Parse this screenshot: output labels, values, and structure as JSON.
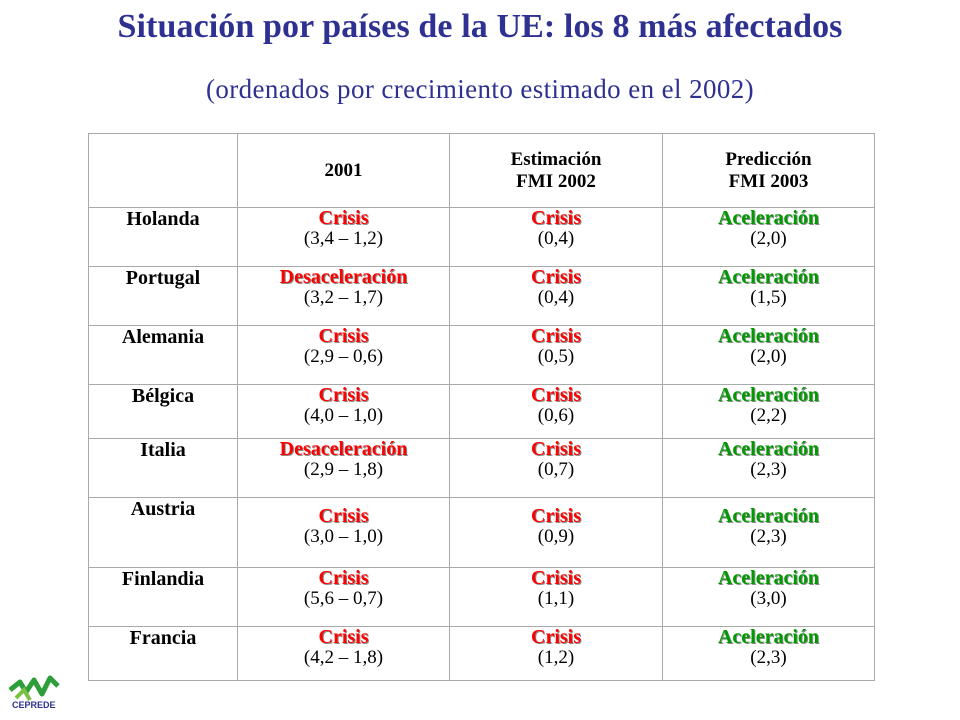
{
  "title": "Situación por países de la UE: los 8 más afectados",
  "subtitle": "(ordenados por crecimiento estimado en el 2002)",
  "header": {
    "col1": "2001",
    "col2_line1": "Estimación",
    "col2_line2": "FMI 2002",
    "col3_line1": "Predicción",
    "col3_line2": "FMI 2003"
  },
  "colors": {
    "crisis": "#ff0000",
    "aceleracion": "#009900",
    "title": "#2e3192"
  },
  "rows": [
    {
      "country": "Holanda",
      "c1": {
        "status": "Crisis",
        "tone": "red",
        "value": "(3,4 – 1,2)"
      },
      "c2": {
        "status": "Crisis",
        "tone": "red",
        "value": "(0,4)"
      },
      "c3": {
        "status": "Aceleración",
        "tone": "green",
        "value": "(2,0)"
      }
    },
    {
      "country": "Portugal",
      "c1": {
        "status": "Desaceleración",
        "tone": "red",
        "value": "(3,2 – 1,7)"
      },
      "c2": {
        "status": "Crisis",
        "tone": "red",
        "value": "(0,4)"
      },
      "c3": {
        "status": "Aceleración",
        "tone": "green",
        "value": "(1,5)"
      }
    },
    {
      "country": "Alemania",
      "c1": {
        "status": "Crisis",
        "tone": "red",
        "value": "(2,9 – 0,6)"
      },
      "c2": {
        "status": "Crisis",
        "tone": "red",
        "value": "(0,5)"
      },
      "c3": {
        "status": "Aceleración",
        "tone": "green",
        "value": "(2,0)"
      }
    },
    {
      "country": "Bélgica",
      "c1": {
        "status": "Crisis",
        "tone": "red",
        "value": "(4,0 – 1,0)"
      },
      "c2": {
        "status": "Crisis",
        "tone": "red",
        "value": "(0,6)"
      },
      "c3": {
        "status": "Aceleración",
        "tone": "green",
        "value": "(2,2)"
      }
    },
    {
      "country": "Italia",
      "c1": {
        "status": "Desaceleración",
        "tone": "red",
        "value": "(2,9 – 1,8)"
      },
      "c2": {
        "status": "Crisis",
        "tone": "red",
        "value": "(0,7)"
      },
      "c3": {
        "status": "Aceleración",
        "tone": "green",
        "value": "(2,3)"
      }
    },
    {
      "country": "Austria",
      "c1": {
        "status": "Crisis",
        "tone": "red",
        "value": "(3,0 – 1,0)"
      },
      "c2": {
        "status": "Crisis",
        "tone": "red",
        "value": "(0,9)"
      },
      "c3": {
        "status": "Aceleración",
        "tone": "green",
        "value": "(2,3)"
      }
    },
    {
      "country": "Finlandia",
      "c1": {
        "status": "Crisis",
        "tone": "red",
        "value": "(5,6 – 0,7)"
      },
      "c2": {
        "status": "Crisis",
        "tone": "red",
        "value": "(1,1)"
      },
      "c3": {
        "status": "Aceleración",
        "tone": "green",
        "value": "(3,0)"
      }
    },
    {
      "country": "Francia",
      "c1": {
        "status": "Crisis",
        "tone": "red",
        "value": "(4,2 – 1,8)"
      },
      "c2": {
        "status": "Crisis",
        "tone": "red",
        "value": "(1,2)"
      },
      "c3": {
        "status": "Aceleración",
        "tone": "green",
        "value": "(2,3)"
      }
    }
  ],
  "logo": {
    "text": "CEPREDE",
    "icon": "ceprede-logo-icon"
  }
}
